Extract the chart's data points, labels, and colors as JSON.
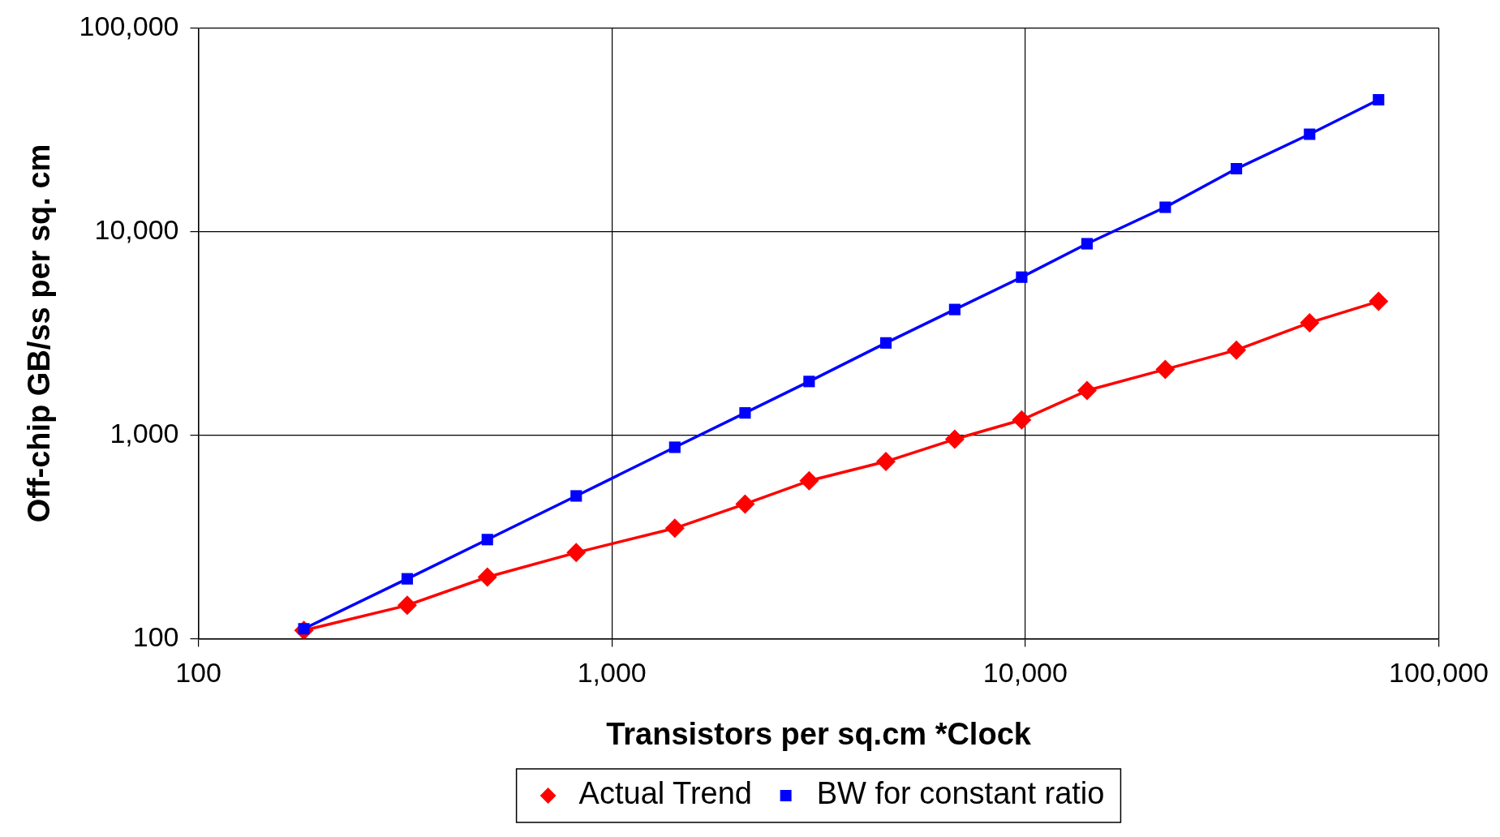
{
  "chart_data": {
    "type": "line",
    "xlabel": "Transistors per sq.cm *Clock",
    "ylabel": "Off-chip GB/ss per sq. cm",
    "x": [
      180,
      320,
      500,
      820,
      1420,
      2100,
      3000,
      4600,
      6750,
      9800,
      14100,
      21800,
      32400,
      48700,
      71500
    ],
    "series": [
      {
        "name": "Actual Trend",
        "color": "#ff0000",
        "marker": "diamond",
        "values": [
          110,
          146,
          201,
          265,
          349,
          459,
          597,
          742,
          955,
          1188,
          1656,
          2105,
          2617,
          3566,
          4540
        ]
      },
      {
        "name": "BW for constant ratio",
        "color": "#0000ff",
        "marker": "square",
        "values": [
          112,
          197,
          307,
          503,
          872,
          1286,
          1835,
          2837,
          4140,
          5970,
          8710,
          13160,
          20340,
          30060,
          44360
        ]
      }
    ],
    "log": "xy",
    "xlim": [
      100,
      100000
    ],
    "ylim": [
      100,
      100000
    ],
    "xticks": [
      100,
      {
        "value": 1000,
        "label": "1,000"
      },
      {
        "value": 10000,
        "label": "10,000"
      },
      {
        "value": 100000,
        "label": "100,000"
      }
    ],
    "yticks": [
      100,
      {
        "value": 1000,
        "label": "1,000"
      },
      {
        "value": 10000,
        "label": "10,000"
      },
      {
        "value": 100000,
        "label": "100,000"
      }
    ],
    "grid": true,
    "legend": "bottom",
    "line_style": "solid"
  }
}
